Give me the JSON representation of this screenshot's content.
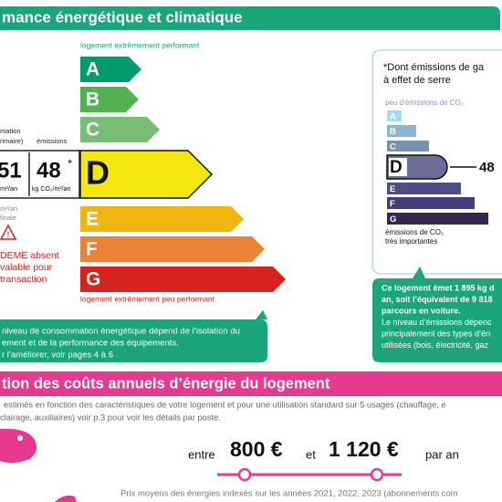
{
  "header": {
    "title": "mance énergétique et climatique"
  },
  "energy": {
    "top_label": "logement extrêmement performant",
    "bottom_label": "logement extrêmement peu performant",
    "classes": [
      "A",
      "B",
      "C",
      "D",
      "E",
      "F",
      "G"
    ]
  },
  "left_panel": {
    "consumption_label": "mation",
    "consumption_sub": "rimaire)",
    "emissions_label": "émissions",
    "consumption_value": "51",
    "consumption_unit": "m²/an",
    "emissions_value": "48",
    "asterisk": "*",
    "emissions_unit": "kg CO₂/m²/an",
    "final_unit": "m²/an",
    "final_label": "finale",
    "warning": [
      "DEME absent",
      "valable pour",
      "transaction"
    ]
  },
  "energy_note": [
    "niveau de consommation énergétique dépend de l’isolation du",
    "ement et de la performance des équipements.",
    "r l’améliorer, voir pages 4 à 6"
  ],
  "ghg": {
    "note": [
      "*Dont émissions de ga",
      "à effet de serre"
    ],
    "top_label": "peu d’émissions de CO₂",
    "classes": [
      "A",
      "B",
      "C",
      "D",
      "E",
      "F",
      "G"
    ],
    "value": "48",
    "bottom_label": [
      "émissions de CO₂",
      "très importantes"
    ]
  },
  "ghg_note": {
    "bold_lines": [
      "Ce logement émet 1 895 kg d",
      "an, soit l’équivalent de 9 818",
      "parcours en voiture."
    ],
    "lines": [
      "Le niveau d’émissions dépenc",
      "principalement des types d’én",
      "utilisées (bois, électricité, gaz"
    ]
  },
  "costs": {
    "title": "tion des coûts annuels d’énergie du logement",
    "description": [
      "estimés en fonction des caractéristiques de votre logement et pour une utilisation standard sur 5 usages (chauffage, e",
      "clairage, auxiliaires) voir p.3 pour voir les détails par poste."
    ],
    "between": "entre",
    "low": "800 €",
    "and": "et",
    "high": "1 120 €",
    "per": "par an",
    "footnote": "Prix moyens des énergies indexés sur les années 2021, 2022, 2023 (abonnements com"
  }
}
